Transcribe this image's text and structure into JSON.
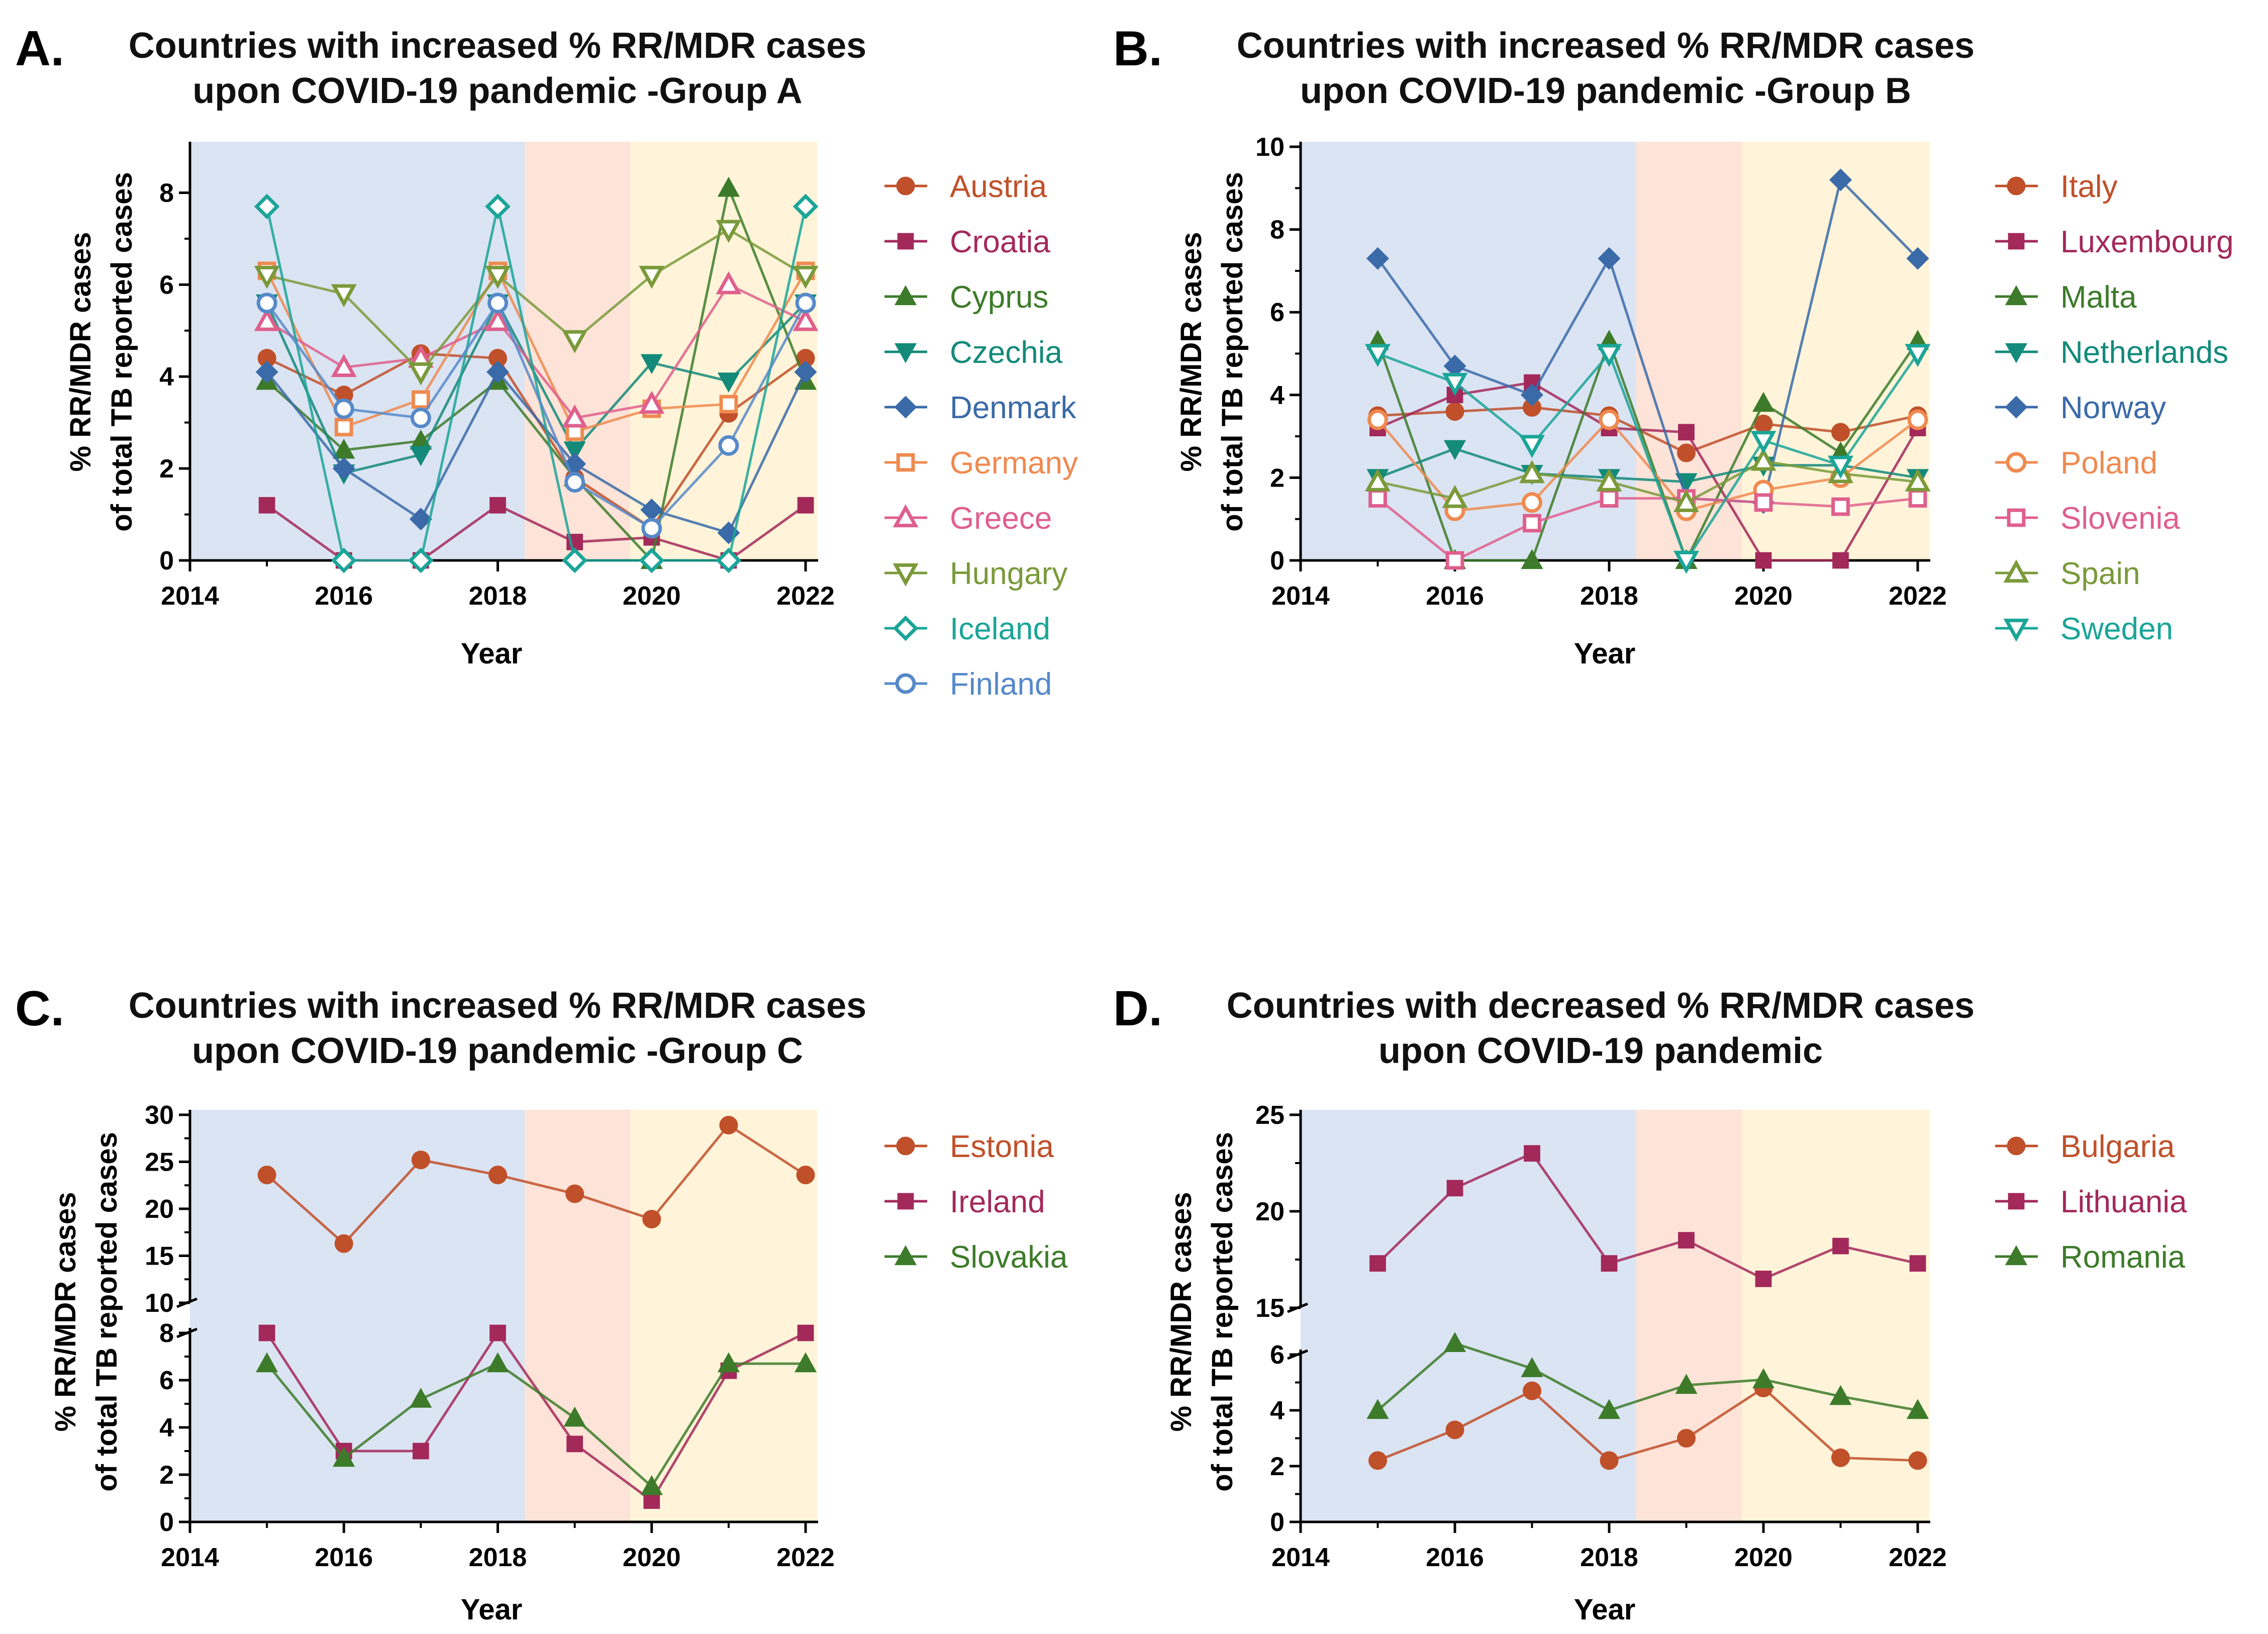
{
  "colors": {
    "pre_pandemic_band": "#dbe4f3",
    "pandemic_band": "#fde3d8",
    "post_pandemic_band": "#fff4d9"
  },
  "chart_data": [
    {
      "type": "line",
      "letter": "A.",
      "title_line1": "Countries with increased % RR/MDR cases",
      "title_line2": "upon COVID-19 pandemic -Group A",
      "xlabel": "Year",
      "ylabel_line1": "% RR/MDR cases",
      "ylabel_line2": "of total TB reported cases",
      "xlim": [
        2014,
        2022
      ],
      "xticks": [
        "2014",
        "2016",
        "2018",
        "2020",
        "2022"
      ],
      "ylim": [
        0,
        9
      ],
      "yticks": [
        "0",
        "2",
        "4",
        "6",
        "8"
      ],
      "x": [
        2015,
        2016,
        2017,
        2018,
        2019,
        2020,
        2021,
        2022
      ],
      "series": [
        {
          "name": "Austria",
          "color": "#c0502a",
          "marker": "circle",
          "values": [
            4.4,
            3.6,
            4.5,
            4.4,
            1.8,
            0.7,
            3.2,
            4.4
          ]
        },
        {
          "name": "Croatia",
          "color": "#a3295a",
          "marker": "square",
          "values": [
            1.2,
            0,
            0,
            1.2,
            0.4,
            0.5,
            0,
            1.2
          ]
        },
        {
          "name": "Cyprus",
          "color": "#3d7b2a",
          "marker": "triangle",
          "values": [
            3.9,
            2.4,
            2.6,
            3.9,
            1.8,
            0,
            8.1,
            3.9
          ]
        },
        {
          "name": "Czechia",
          "color": "#138a7a",
          "marker": "triangle-down",
          "values": [
            5.6,
            1.9,
            2.3,
            5.6,
            2.4,
            4.3,
            3.9,
            5.6
          ]
        },
        {
          "name": "Denmark",
          "color": "#3a6aa8",
          "marker": "diamond",
          "values": [
            4.1,
            2,
            0.9,
            4.1,
            2.1,
            1.1,
            0.6,
            4.1
          ]
        },
        {
          "name": "Germany",
          "color": "#ef8a4f",
          "marker": "square-open",
          "values": [
            6.3,
            2.9,
            3.5,
            6.3,
            2.8,
            3.3,
            3.4,
            6.3
          ]
        },
        {
          "name": "Greece",
          "color": "#df5f8d",
          "marker": "triangle-open",
          "values": [
            5.2,
            4.2,
            4.4,
            5.2,
            3.1,
            3.4,
            6.0,
            5.2
          ]
        },
        {
          "name": "Hungary",
          "color": "#7a9a3a",
          "marker": "triangle-down-open",
          "values": [
            6.2,
            5.8,
            4.1,
            6.2,
            4.8,
            6.2,
            7.2,
            6.2
          ]
        },
        {
          "name": "Iceland",
          "color": "#1aa598",
          "marker": "diamond-open",
          "values": [
            7.7,
            0,
            0,
            7.7,
            0,
            0,
            0,
            7.7
          ]
        },
        {
          "name": "Finland",
          "color": "#5689c9",
          "marker": "circle-open",
          "values": [
            5.6,
            3.3,
            3.1,
            5.6,
            1.7,
            0.7,
            2.5,
            5.6
          ]
        }
      ]
    },
    {
      "type": "line",
      "letter": "B.",
      "title_line1": "Countries with increased % RR/MDR cases",
      "title_line2": "upon COVID-19 pandemic -Group B",
      "xlabel": "Year",
      "ylabel_line1": "% RR/MDR cases",
      "ylabel_line2": "of total TB reported cases",
      "xlim": [
        2014,
        2022
      ],
      "xticks": [
        "2014",
        "2016",
        "2018",
        "2020",
        "2022"
      ],
      "ylim": [
        0,
        10
      ],
      "yticks": [
        "0",
        "2",
        "4",
        "6",
        "8",
        "10"
      ],
      "x": [
        2015,
        2016,
        2017,
        2018,
        2019,
        2020,
        2021,
        2022
      ],
      "series": [
        {
          "name": "Italy",
          "color": "#c0502a",
          "marker": "circle",
          "values": [
            3.5,
            3.6,
            3.7,
            3.5,
            2.6,
            3.3,
            3.1,
            3.5
          ]
        },
        {
          "name": "Luxembourg",
          "color": "#a3295a",
          "marker": "square",
          "values": [
            3.2,
            4.0,
            4.3,
            3.2,
            3.1,
            0,
            0,
            3.2
          ]
        },
        {
          "name": "Malta",
          "color": "#3d7b2a",
          "marker": "triangle",
          "values": [
            5.3,
            0,
            0,
            5.3,
            0,
            3.8,
            2.6,
            5.3
          ]
        },
        {
          "name": "Netherlands",
          "color": "#138a7a",
          "marker": "triangle-down",
          "values": [
            2.0,
            2.7,
            2.1,
            2.0,
            1.9,
            2.3,
            2.3,
            2.0
          ]
        },
        {
          "name": "Norway",
          "color": "#3a6aa8",
          "marker": "diamond",
          "values": [
            7.3,
            4.7,
            4.0,
            7.3,
            1.5,
            1.4,
            9.2,
            7.3
          ]
        },
        {
          "name": "Poland",
          "color": "#ef8a4f",
          "marker": "circle-open",
          "values": [
            3.4,
            1.2,
            1.4,
            3.4,
            1.2,
            1.7,
            2.0,
            3.4
          ]
        },
        {
          "name": "Slovenia",
          "color": "#df5f8d",
          "marker": "square-open",
          "values": [
            1.5,
            0,
            0.9,
            1.5,
            1.5,
            1.4,
            1.3,
            1.5
          ]
        },
        {
          "name": "Spain",
          "color": "#7a9a3a",
          "marker": "triangle-open",
          "values": [
            1.9,
            1.5,
            2.1,
            1.9,
            1.4,
            2.4,
            2.1,
            1.9
          ]
        },
        {
          "name": "Sweden",
          "color": "#1aa598",
          "marker": "triangle-down-open",
          "values": [
            5.0,
            4.3,
            2.8,
            5.0,
            0,
            2.9,
            2.3,
            5.0
          ]
        }
      ]
    },
    {
      "type": "line",
      "letter": "C.",
      "title_line1": "Countries with increased % RR/MDR cases",
      "title_line2": "upon COVID-19 pandemic -Group C",
      "xlabel": "Year",
      "ylabel_line1": "% RR/MDR cases",
      "ylabel_line2": "of total TB reported cases",
      "xlim": [
        2014,
        2022
      ],
      "xticks": [
        "2014",
        "2016",
        "2018",
        "2020",
        "2022"
      ],
      "broken_axis": true,
      "ylim_lower": [
        0,
        8
      ],
      "yticks_lower": [
        "0",
        "2",
        "4",
        "6",
        "8"
      ],
      "ylim_upper": [
        10,
        30
      ],
      "yticks_upper": [
        "10",
        "15",
        "20",
        "25",
        "30"
      ],
      "x": [
        2015,
        2016,
        2017,
        2018,
        2019,
        2020,
        2021,
        2022
      ],
      "series": [
        {
          "name": "Estonia",
          "color": "#c0502a",
          "marker": "circle",
          "values": [
            23.6,
            16.3,
            25.2,
            23.6,
            21.6,
            18.9,
            28.9,
            23.6
          ]
        },
        {
          "name": "Ireland",
          "color": "#a3295a",
          "marker": "square",
          "values": [
            8.0,
            3.0,
            3.0,
            8.0,
            3.3,
            0.9,
            6.4,
            8.0
          ]
        },
        {
          "name": "Slovakia",
          "color": "#3d7b2a",
          "marker": "triangle",
          "values": [
            6.7,
            2.7,
            5.2,
            6.7,
            4.4,
            1.5,
            6.7,
            6.7
          ]
        }
      ]
    },
    {
      "type": "line",
      "letter": "D.",
      "title_line1": "Countries with decreased % RR/MDR cases",
      "title_line2": "upon COVID-19 pandemic",
      "xlabel": "Year",
      "ylabel_line1": "% RR/MDR cases",
      "ylabel_line2": "of total TB reported cases",
      "xlim": [
        2014,
        2022
      ],
      "xticks": [
        "2014",
        "2016",
        "2018",
        "2020",
        "2022"
      ],
      "broken_axis": true,
      "ylim_lower": [
        0,
        6
      ],
      "yticks_lower": [
        "0",
        "2",
        "4",
        "6"
      ],
      "ylim_upper": [
        15,
        25
      ],
      "yticks_upper": [
        "15",
        "20",
        "25"
      ],
      "x": [
        2015,
        2016,
        2017,
        2018,
        2019,
        2020,
        2021,
        2022
      ],
      "series": [
        {
          "name": "Bulgaria",
          "color": "#c0502a",
          "marker": "circle",
          "values": [
            2.2,
            3.3,
            4.7,
            2.2,
            3.0,
            4.8,
            2.3,
            2.2
          ]
        },
        {
          "name": "Lithuania",
          "color": "#a3295a",
          "marker": "square",
          "values": [
            17.3,
            21.2,
            23.0,
            17.3,
            18.5,
            16.5,
            18.2,
            17.3
          ]
        },
        {
          "name": "Romania",
          "color": "#3d7b2a",
          "marker": "triangle",
          "values": [
            4.0,
            6.4,
            5.5,
            4.0,
            4.9,
            5.1,
            4.5,
            4.0
          ]
        }
      ]
    }
  ]
}
